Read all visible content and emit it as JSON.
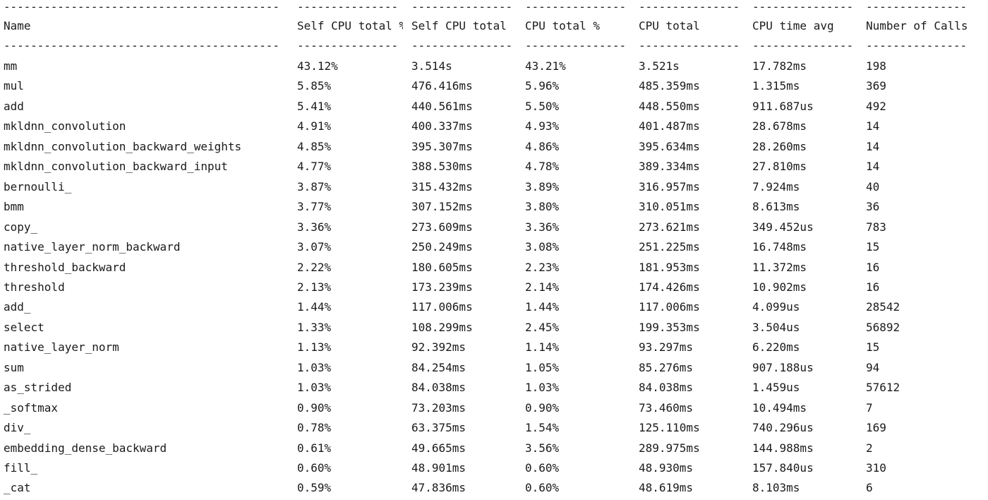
{
  "separators": [
    "-----------------------------------------",
    "---------------",
    "---------------",
    "---------------",
    "---------------",
    "---------------",
    "---------------"
  ],
  "headers": [
    "Name",
    "Self CPU total %",
    "Self CPU total",
    "CPU total %",
    "CPU total",
    "CPU time avg",
    "Number of Calls"
  ],
  "rows": [
    [
      "mm",
      "43.12%",
      "3.514s",
      "43.21%",
      "3.521s",
      "17.782ms",
      "198"
    ],
    [
      "mul",
      "5.85%",
      "476.416ms",
      "5.96%",
      "485.359ms",
      "1.315ms",
      "369"
    ],
    [
      "add",
      "5.41%",
      "440.561ms",
      "5.50%",
      "448.550ms",
      "911.687us",
      "492"
    ],
    [
      "mkldnn_convolution",
      "4.91%",
      "400.337ms",
      "4.93%",
      "401.487ms",
      "28.678ms",
      "14"
    ],
    [
      "mkldnn_convolution_backward_weights",
      "4.85%",
      "395.307ms",
      "4.86%",
      "395.634ms",
      "28.260ms",
      "14"
    ],
    [
      "mkldnn_convolution_backward_input",
      "4.77%",
      "388.530ms",
      "4.78%",
      "389.334ms",
      "27.810ms",
      "14"
    ],
    [
      "bernoulli_",
      "3.87%",
      "315.432ms",
      "3.89%",
      "316.957ms",
      "7.924ms",
      "40"
    ],
    [
      "bmm",
      "3.77%",
      "307.152ms",
      "3.80%",
      "310.051ms",
      "8.613ms",
      "36"
    ],
    [
      "copy_",
      "3.36%",
      "273.609ms",
      "3.36%",
      "273.621ms",
      "349.452us",
      "783"
    ],
    [
      "native_layer_norm_backward",
      "3.07%",
      "250.249ms",
      "3.08%",
      "251.225ms",
      "16.748ms",
      "15"
    ],
    [
      "threshold_backward",
      "2.22%",
      "180.605ms",
      "2.23%",
      "181.953ms",
      "11.372ms",
      "16"
    ],
    [
      "threshold",
      "2.13%",
      "173.239ms",
      "2.14%",
      "174.426ms",
      "10.902ms",
      "16"
    ],
    [
      "add_",
      "1.44%",
      "117.006ms",
      "1.44%",
      "117.006ms",
      "4.099us",
      "28542"
    ],
    [
      "select",
      "1.33%",
      "108.299ms",
      "2.45%",
      "199.353ms",
      "3.504us",
      "56892"
    ],
    [
      "native_layer_norm",
      "1.13%",
      "92.392ms",
      "1.14%",
      "93.297ms",
      "6.220ms",
      "15"
    ],
    [
      "sum",
      "1.03%",
      "84.254ms",
      "1.05%",
      "85.276ms",
      "907.188us",
      "94"
    ],
    [
      "as_strided",
      "1.03%",
      "84.038ms",
      "1.03%",
      "84.038ms",
      "1.459us",
      "57612"
    ],
    [
      "_softmax",
      "0.90%",
      "73.203ms",
      "0.90%",
      "73.460ms",
      "10.494ms",
      "7"
    ],
    [
      "div_",
      "0.78%",
      "63.375ms",
      "1.54%",
      "125.110ms",
      "740.296us",
      "169"
    ],
    [
      "embedding_dense_backward",
      "0.61%",
      "49.665ms",
      "3.56%",
      "289.975ms",
      "144.988ms",
      "2"
    ],
    [
      "fill_",
      "0.60%",
      "48.901ms",
      "0.60%",
      "48.930ms",
      "157.840us",
      "310"
    ],
    [
      "_cat",
      "0.59%",
      "47.836ms",
      "0.60%",
      "48.619ms",
      "8.103ms",
      "6"
    ]
  ]
}
